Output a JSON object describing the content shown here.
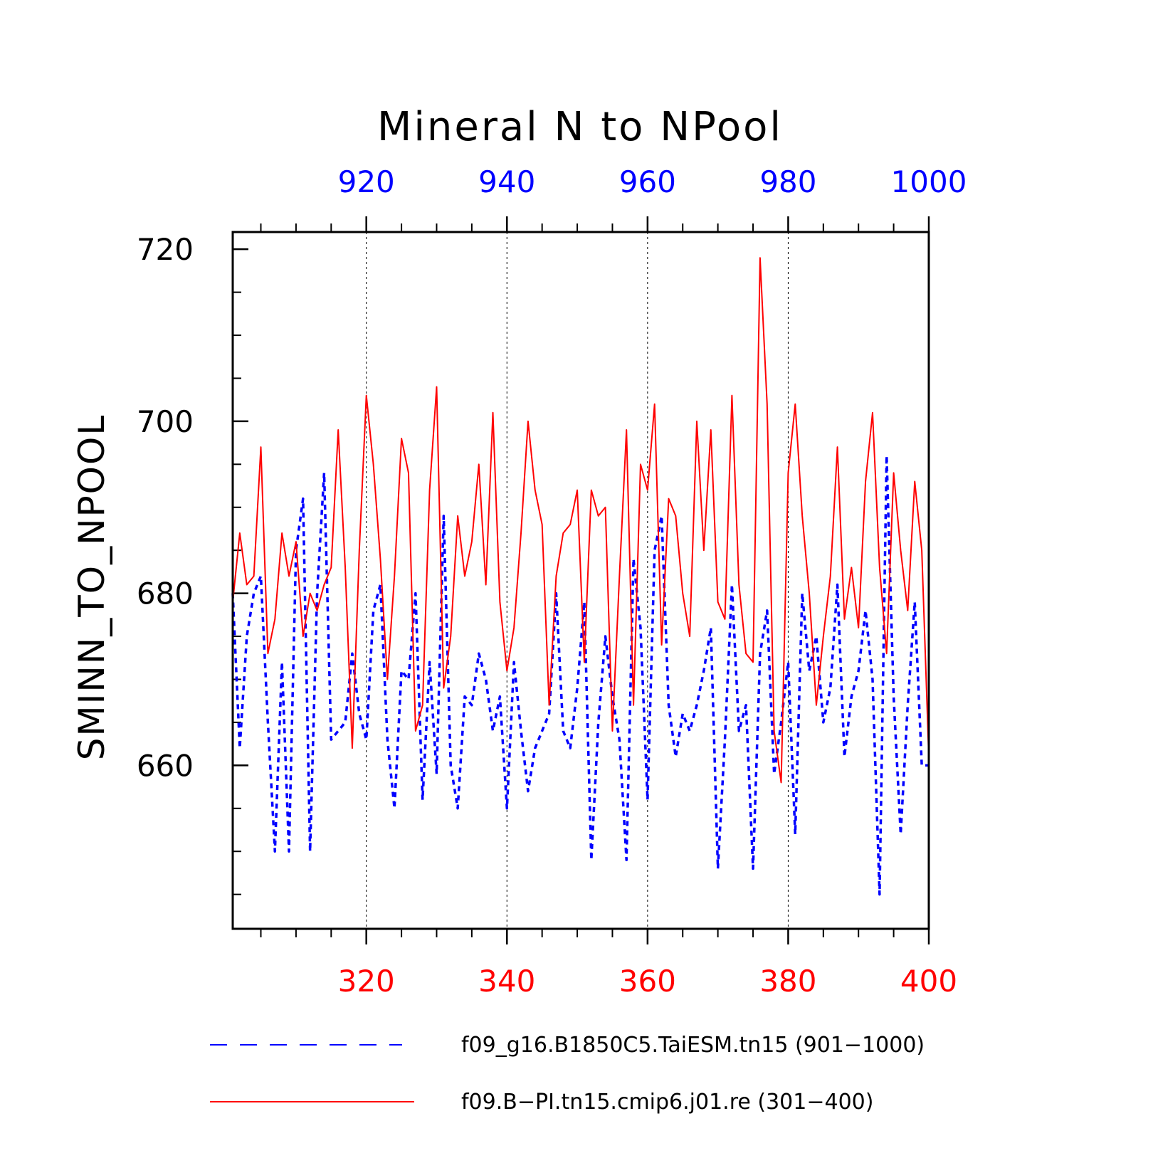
{
  "chart_data": {
    "type": "line",
    "title": "Mineral N to NPool",
    "ylabel": "SMINN_TO_NPOOL",
    "ylim": [
      641,
      722
    ],
    "y_ticks": [
      660,
      680,
      700,
      720
    ],
    "x_bottom": {
      "range": [
        301,
        400
      ],
      "ticks": [
        320,
        340,
        360,
        380,
        400
      ],
      "color": "#ff0000"
    },
    "x_top": {
      "range": [
        901,
        1000
      ],
      "ticks": [
        920,
        940,
        960,
        980,
        1000
      ],
      "color": "#0000ff"
    },
    "vertical_grid_top_x": [
      920,
      940,
      960,
      980
    ],
    "series": [
      {
        "name": "f09_g16.B1850C5.TaiESM.tn15 (901−1000)",
        "axis": "top",
        "color": "#0000ff",
        "style": "dashed",
        "x_start": 901,
        "values": [
          680,
          662,
          675,
          680,
          682,
          665,
          650,
          672,
          650,
          685,
          691,
          650,
          680,
          694,
          663,
          664,
          665,
          673,
          666,
          663,
          678,
          681,
          663,
          655,
          671,
          670,
          680,
          656,
          672,
          659,
          689,
          660,
          655,
          668,
          667,
          673,
          670,
          664,
          668,
          655,
          672,
          664,
          657,
          662,
          664,
          666,
          680,
          664,
          662,
          669,
          679,
          649,
          665,
          675,
          668,
          663,
          649,
          684,
          676,
          656,
          685,
          689,
          667,
          661,
          666,
          664,
          667,
          671,
          676,
          648,
          663,
          681,
          664,
          667,
          648,
          673,
          678,
          659,
          665,
          672,
          652,
          680,
          671,
          675,
          665,
          669,
          681,
          661,
          668,
          671,
          678,
          670,
          645,
          696,
          668,
          652,
          667,
          679,
          660,
          660
        ]
      },
      {
        "name": "f09.B−PI.tn15.cmip6.j01.re (301−400)",
        "axis": "bottom",
        "color": "#ff0000",
        "style": "solid",
        "x_start": 301,
        "values": [
          679,
          687,
          681,
          682,
          697,
          673,
          677,
          687,
          682,
          686,
          675,
          680,
          678,
          681,
          683,
          699,
          683,
          662,
          685,
          703,
          695,
          684,
          670,
          682,
          698,
          694,
          664,
          667,
          692,
          704,
          669,
          675,
          689,
          682,
          686,
          695,
          681,
          701,
          679,
          671,
          676,
          687,
          700,
          692,
          688,
          667,
          682,
          687,
          688,
          692,
          672,
          692,
          689,
          690,
          664,
          682,
          699,
          667,
          695,
          692,
          702,
          674,
          691,
          689,
          680,
          675,
          700,
          685,
          699,
          679,
          677,
          703,
          681,
          673,
          672,
          719,
          702,
          664,
          658,
          694,
          702,
          689,
          680,
          667,
          675,
          682,
          697,
          677,
          683,
          676,
          693,
          701,
          683,
          673,
          694,
          685,
          678,
          693,
          685,
          661
        ]
      }
    ]
  }
}
